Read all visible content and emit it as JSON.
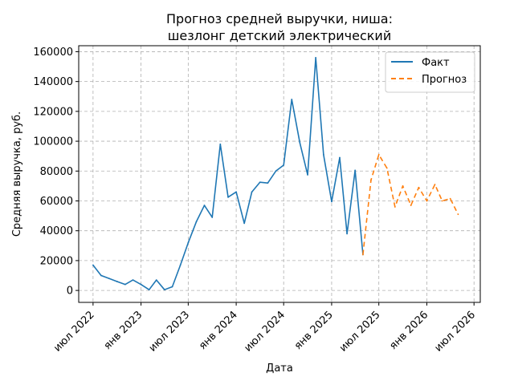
{
  "chart_data": {
    "type": "line",
    "title_lines": [
      "Прогноз средней выручки, ниша:",
      "шезлонг детский электрический"
    ],
    "xlabel": "Дата",
    "ylabel": "Средняя выручка, руб.",
    "x_ticks": [
      {
        "date": "2022-07-01",
        "label": "июл 2022"
      },
      {
        "date": "2023-01-01",
        "label": "янв 2023"
      },
      {
        "date": "2023-07-01",
        "label": "июл 2023"
      },
      {
        "date": "2024-01-01",
        "label": "янв 2024"
      },
      {
        "date": "2024-07-01",
        "label": "июл 2024"
      },
      {
        "date": "2025-01-01",
        "label": "янв 2025"
      },
      {
        "date": "2025-07-01",
        "label": "июл 2025"
      },
      {
        "date": "2026-01-01",
        "label": "янв 2026"
      },
      {
        "date": "2026-07-01",
        "label": "июл 2026"
      }
    ],
    "y_ticks": [
      0,
      20000,
      40000,
      60000,
      80000,
      100000,
      120000,
      140000,
      160000
    ],
    "xlim": [
      "2022-05-07",
      "2026-07-25"
    ],
    "ylim": [
      -8000,
      164000
    ],
    "grid": true,
    "legend_position": "top-right",
    "series": [
      {
        "name": "Факт",
        "color": "#1f77b4",
        "style": "solid",
        "points": [
          [
            "2022-07-01",
            17000
          ],
          [
            "2022-08-01",
            10000
          ],
          [
            "2022-09-01",
            8000
          ],
          [
            "2022-10-01",
            6000
          ],
          [
            "2022-11-01",
            4000
          ],
          [
            "2022-12-01",
            7000
          ],
          [
            "2023-01-01",
            4000
          ],
          [
            "2023-02-01",
            500
          ],
          [
            "2023-03-01",
            7000
          ],
          [
            "2023-04-01",
            500
          ],
          [
            "2023-05-01",
            2500
          ],
          [
            "2023-06-01",
            17000
          ],
          [
            "2023-07-01",
            32000
          ],
          [
            "2023-08-01",
            46000
          ],
          [
            "2023-09-01",
            57000
          ],
          [
            "2023-10-01",
            49000
          ],
          [
            "2023-11-01",
            98000
          ],
          [
            "2023-12-01",
            62500
          ],
          [
            "2024-01-01",
            66000
          ],
          [
            "2024-02-01",
            45000
          ],
          [
            "2024-03-01",
            66000
          ],
          [
            "2024-04-01",
            72500
          ],
          [
            "2024-05-01",
            72000
          ],
          [
            "2024-06-01",
            80000
          ],
          [
            "2024-07-01",
            84000
          ],
          [
            "2024-08-01",
            128000
          ],
          [
            "2024-09-01",
            99000
          ],
          [
            "2024-10-01",
            77500
          ],
          [
            "2024-11-01",
            156000
          ],
          [
            "2024-12-01",
            91000
          ],
          [
            "2025-01-01",
            59500
          ],
          [
            "2025-02-01",
            89000
          ],
          [
            "2025-03-01",
            38000
          ],
          [
            "2025-04-01",
            80500
          ],
          [
            "2025-05-01",
            24000
          ]
        ]
      },
      {
        "name": "Прогноз",
        "color": "#ff7f0e",
        "style": "dashed",
        "points": [
          [
            "2025-05-01",
            24000
          ],
          [
            "2025-06-01",
            74000
          ],
          [
            "2025-07-01",
            91000
          ],
          [
            "2025-08-01",
            82000
          ],
          [
            "2025-09-01",
            56000
          ],
          [
            "2025-10-01",
            70000
          ],
          [
            "2025-11-01",
            57000
          ],
          [
            "2025-12-01",
            69000
          ],
          [
            "2026-01-01",
            60000
          ],
          [
            "2026-02-01",
            71000
          ],
          [
            "2026-03-01",
            60000
          ],
          [
            "2026-04-01",
            61500
          ],
          [
            "2026-05-01",
            51000
          ]
        ]
      }
    ]
  }
}
